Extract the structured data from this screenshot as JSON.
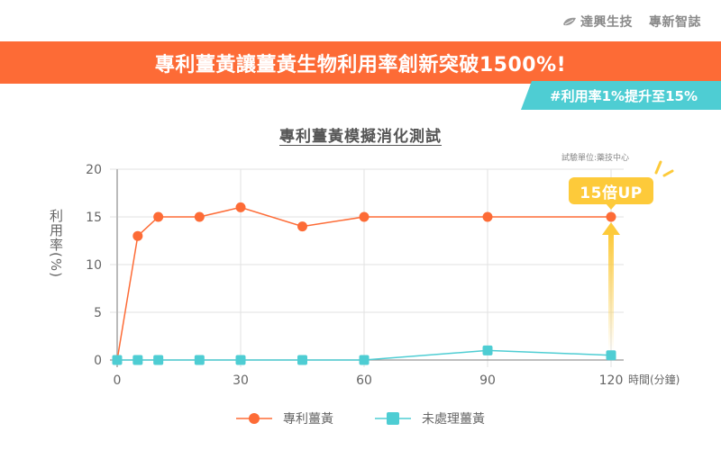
{
  "brand": {
    "logo_icon": "leaf-logo-icon",
    "company": "達興生技",
    "section": "專新智誌"
  },
  "banner": {
    "headline": "專利薑黃讓薑黃生物利用率創新突破1500%!",
    "tag": "#利用率1%提升至15%"
  },
  "colors": {
    "orange": "#fd6b36",
    "teal": "#4ecdd3",
    "yellow": "#fdca3a",
    "grid": "#e2e2e2",
    "axis": "#bbbbbb",
    "text": "#666666"
  },
  "callout": {
    "label": "15倍UP"
  },
  "chart_data": {
    "type": "line",
    "title": "專利薑黃模擬消化測試",
    "subtitle": "試驗單位:藥技中心",
    "xlabel": "時間(分鐘)",
    "ylabel": "利用率(%)",
    "x": [
      0,
      5,
      10,
      20,
      30,
      45,
      60,
      90,
      120
    ],
    "xticks": [
      0,
      30,
      60,
      90,
      120
    ],
    "yticks": [
      0,
      5,
      10,
      15,
      20
    ],
    "xlim": [
      0,
      120
    ],
    "ylim": [
      0,
      20
    ],
    "grid": true,
    "legend_position": "bottom",
    "series": [
      {
        "name": "專利薑黃",
        "marker": "circle",
        "color": "#fd6b36",
        "values": [
          0,
          13,
          15,
          15,
          16,
          14,
          15,
          15,
          15
        ]
      },
      {
        "name": "未處理薑黃",
        "marker": "square",
        "color": "#4ecdd3",
        "values": [
          0,
          0,
          0,
          0,
          0,
          0,
          0,
          1,
          0.5
        ]
      }
    ],
    "annotations": [
      {
        "text": "15倍UP",
        "x": 120,
        "y": 15,
        "type": "arrow-up"
      }
    ]
  }
}
